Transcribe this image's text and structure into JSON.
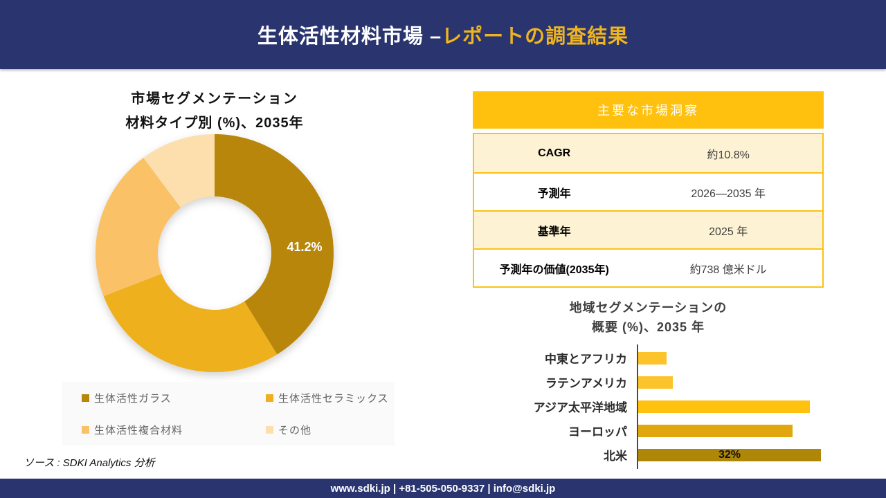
{
  "header": {
    "title_white": "生体活性材料市場 –",
    "title_accent": "レポートの調査結果"
  },
  "donut": {
    "title_line1": "市場セグメンテーション",
    "title_line2": "材料タイプ別 (%)、2035年",
    "center_slice_label": "41.2%"
  },
  "legend": {
    "items": [
      {
        "label": "生体活性ガラス",
        "color": "#B8860B"
      },
      {
        "label": "生体活性セラミックス",
        "color": "#EEB01C"
      },
      {
        "label": "生体活性複合材料",
        "color": "#FBC167"
      },
      {
        "label": "その他",
        "color": "#FCDFAD"
      }
    ]
  },
  "source": {
    "text": "ソース : SDKI Analytics 分析"
  },
  "insights": {
    "header": "主要な市場洞察",
    "rows": [
      {
        "label": "CAGR",
        "value": "約10.8%"
      },
      {
        "label": "予測年",
        "value": "2026—2035 年"
      },
      {
        "label": "基準年",
        "value": "2025 年"
      },
      {
        "label": "予測年の価値(2035年)",
        "value": "約738 億米ドル"
      }
    ]
  },
  "region_chart": {
    "title_line1": "地域セグメンテーションの",
    "title_line2": "概要 (%)、2035 年"
  },
  "footer": {
    "text": "www.sdki.jp | +81-505-050-9337 | info@sdki.jp"
  },
  "colors": {
    "banner_navy": "#2A3570",
    "banner_accent": "#EFB41E",
    "table_gold": "#FFC10E",
    "table_cream": "#FDF2D3"
  },
  "chart_data": [
    {
      "type": "pie",
      "subtype": "donut",
      "title": "市場セグメンテーション 材料タイプ別 (%)、2035年",
      "labels": [
        "生体活性ガラス",
        "生体活性セラミックス",
        "生体活性複合材料",
        "その他"
      ],
      "values": [
        41.2,
        27.9,
        20.7,
        10.2
      ],
      "colors": [
        "#B8860B",
        "#EEB01C",
        "#FBC167",
        "#FCDFAD"
      ],
      "data_labels": [
        "41.2%",
        "",
        "",
        ""
      ],
      "start_angle_deg": 0,
      "direction": "clockwise",
      "legend_position": "bottom",
      "note": "only the first slice (41.2%) is labeled; other values estimated from arc angles"
    },
    {
      "type": "bar",
      "orientation": "horizontal",
      "title": "地域セグメンテーションの概要 (%)、2035 年",
      "categories": [
        "中東とアフリカ",
        "ラテンアメリカ",
        "アジア太平洋地域",
        "ヨーロッパ",
        "北米"
      ],
      "values": [
        5,
        6,
        30,
        27,
        32
      ],
      "colors": [
        "#FCC32B",
        "#FCC32B",
        "#FFC30F",
        "#E0A80E",
        "#AE8709"
      ],
      "data_labels": [
        "",
        "",
        "",
        "",
        "32%"
      ],
      "xlim": [
        0,
        35
      ],
      "grid": false,
      "note": "only 北米 bar labeled 32%; other values estimated proportionally"
    }
  ]
}
